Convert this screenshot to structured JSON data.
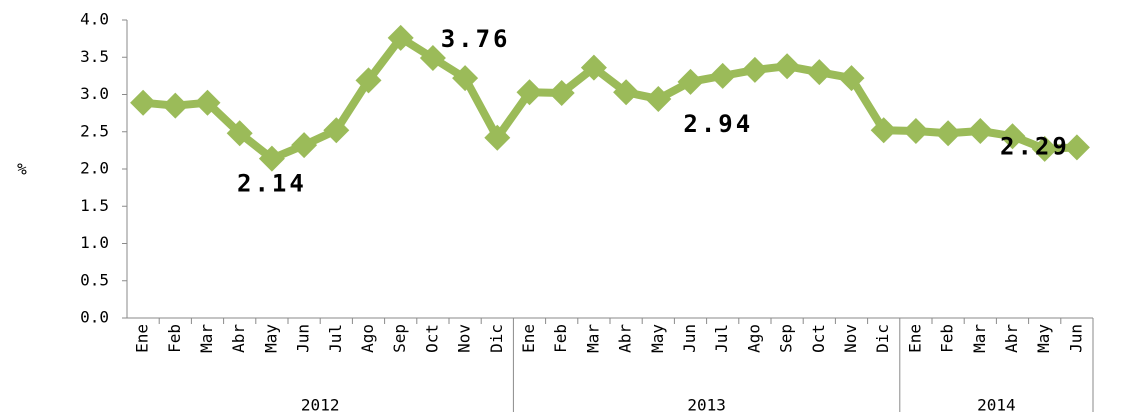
{
  "chart_data": {
    "type": "line",
    "y_label": "%",
    "groups": [
      {
        "label": "2012",
        "categories": [
          "Ene",
          "Feb",
          "Mar",
          "Abr",
          "May",
          "Jun",
          "Jul",
          "Ago",
          "Sep",
          "Oct",
          "Nov",
          "Dic"
        ]
      },
      {
        "label": "2013",
        "categories": [
          "Ene",
          "Feb",
          "Mar",
          "Abr",
          "May",
          "Jun",
          "Jul",
          "Ago",
          "Sep",
          "Oct",
          "Nov",
          "Dic"
        ]
      },
      {
        "label": "2014",
        "categories": [
          "Ene",
          "Feb",
          "Mar",
          "Abr",
          "May",
          "Jun"
        ]
      }
    ],
    "series": [
      {
        "color": "#9bbb59",
        "values": [
          2.89,
          2.85,
          2.89,
          2.48,
          2.14,
          2.32,
          2.52,
          3.19,
          3.76,
          3.49,
          3.22,
          2.42,
          3.03,
          3.02,
          3.36,
          3.03,
          2.94,
          3.17,
          3.25,
          3.33,
          3.38,
          3.3,
          3.22,
          2.52,
          2.51,
          2.48,
          2.51,
          2.44,
          2.27,
          2.29
        ],
        "value_labels": [
          null,
          null,
          null,
          null,
          "2.14",
          null,
          null,
          null,
          "3.76",
          null,
          null,
          null,
          null,
          null,
          null,
          null,
          "2.94",
          null,
          null,
          null,
          null,
          null,
          null,
          null,
          null,
          null,
          null,
          null,
          null,
          "2.29"
        ]
      }
    ],
    "ylim": [
      0,
      4
    ],
    "yticks": [
      {
        "value": 0,
        "label": "0.0"
      },
      {
        "value": 0.5,
        "label": "0.5"
      },
      {
        "value": 1,
        "label": "1.0"
      },
      {
        "value": 1.5,
        "label": "1.5"
      },
      {
        "value": 2,
        "label": "2.0"
      },
      {
        "value": 2.5,
        "label": "2.5"
      },
      {
        "value": 3,
        "label": "3.0"
      },
      {
        "value": 3.5,
        "label": "3.5"
      },
      {
        "value": 4,
        "label": "4.0"
      }
    ]
  }
}
